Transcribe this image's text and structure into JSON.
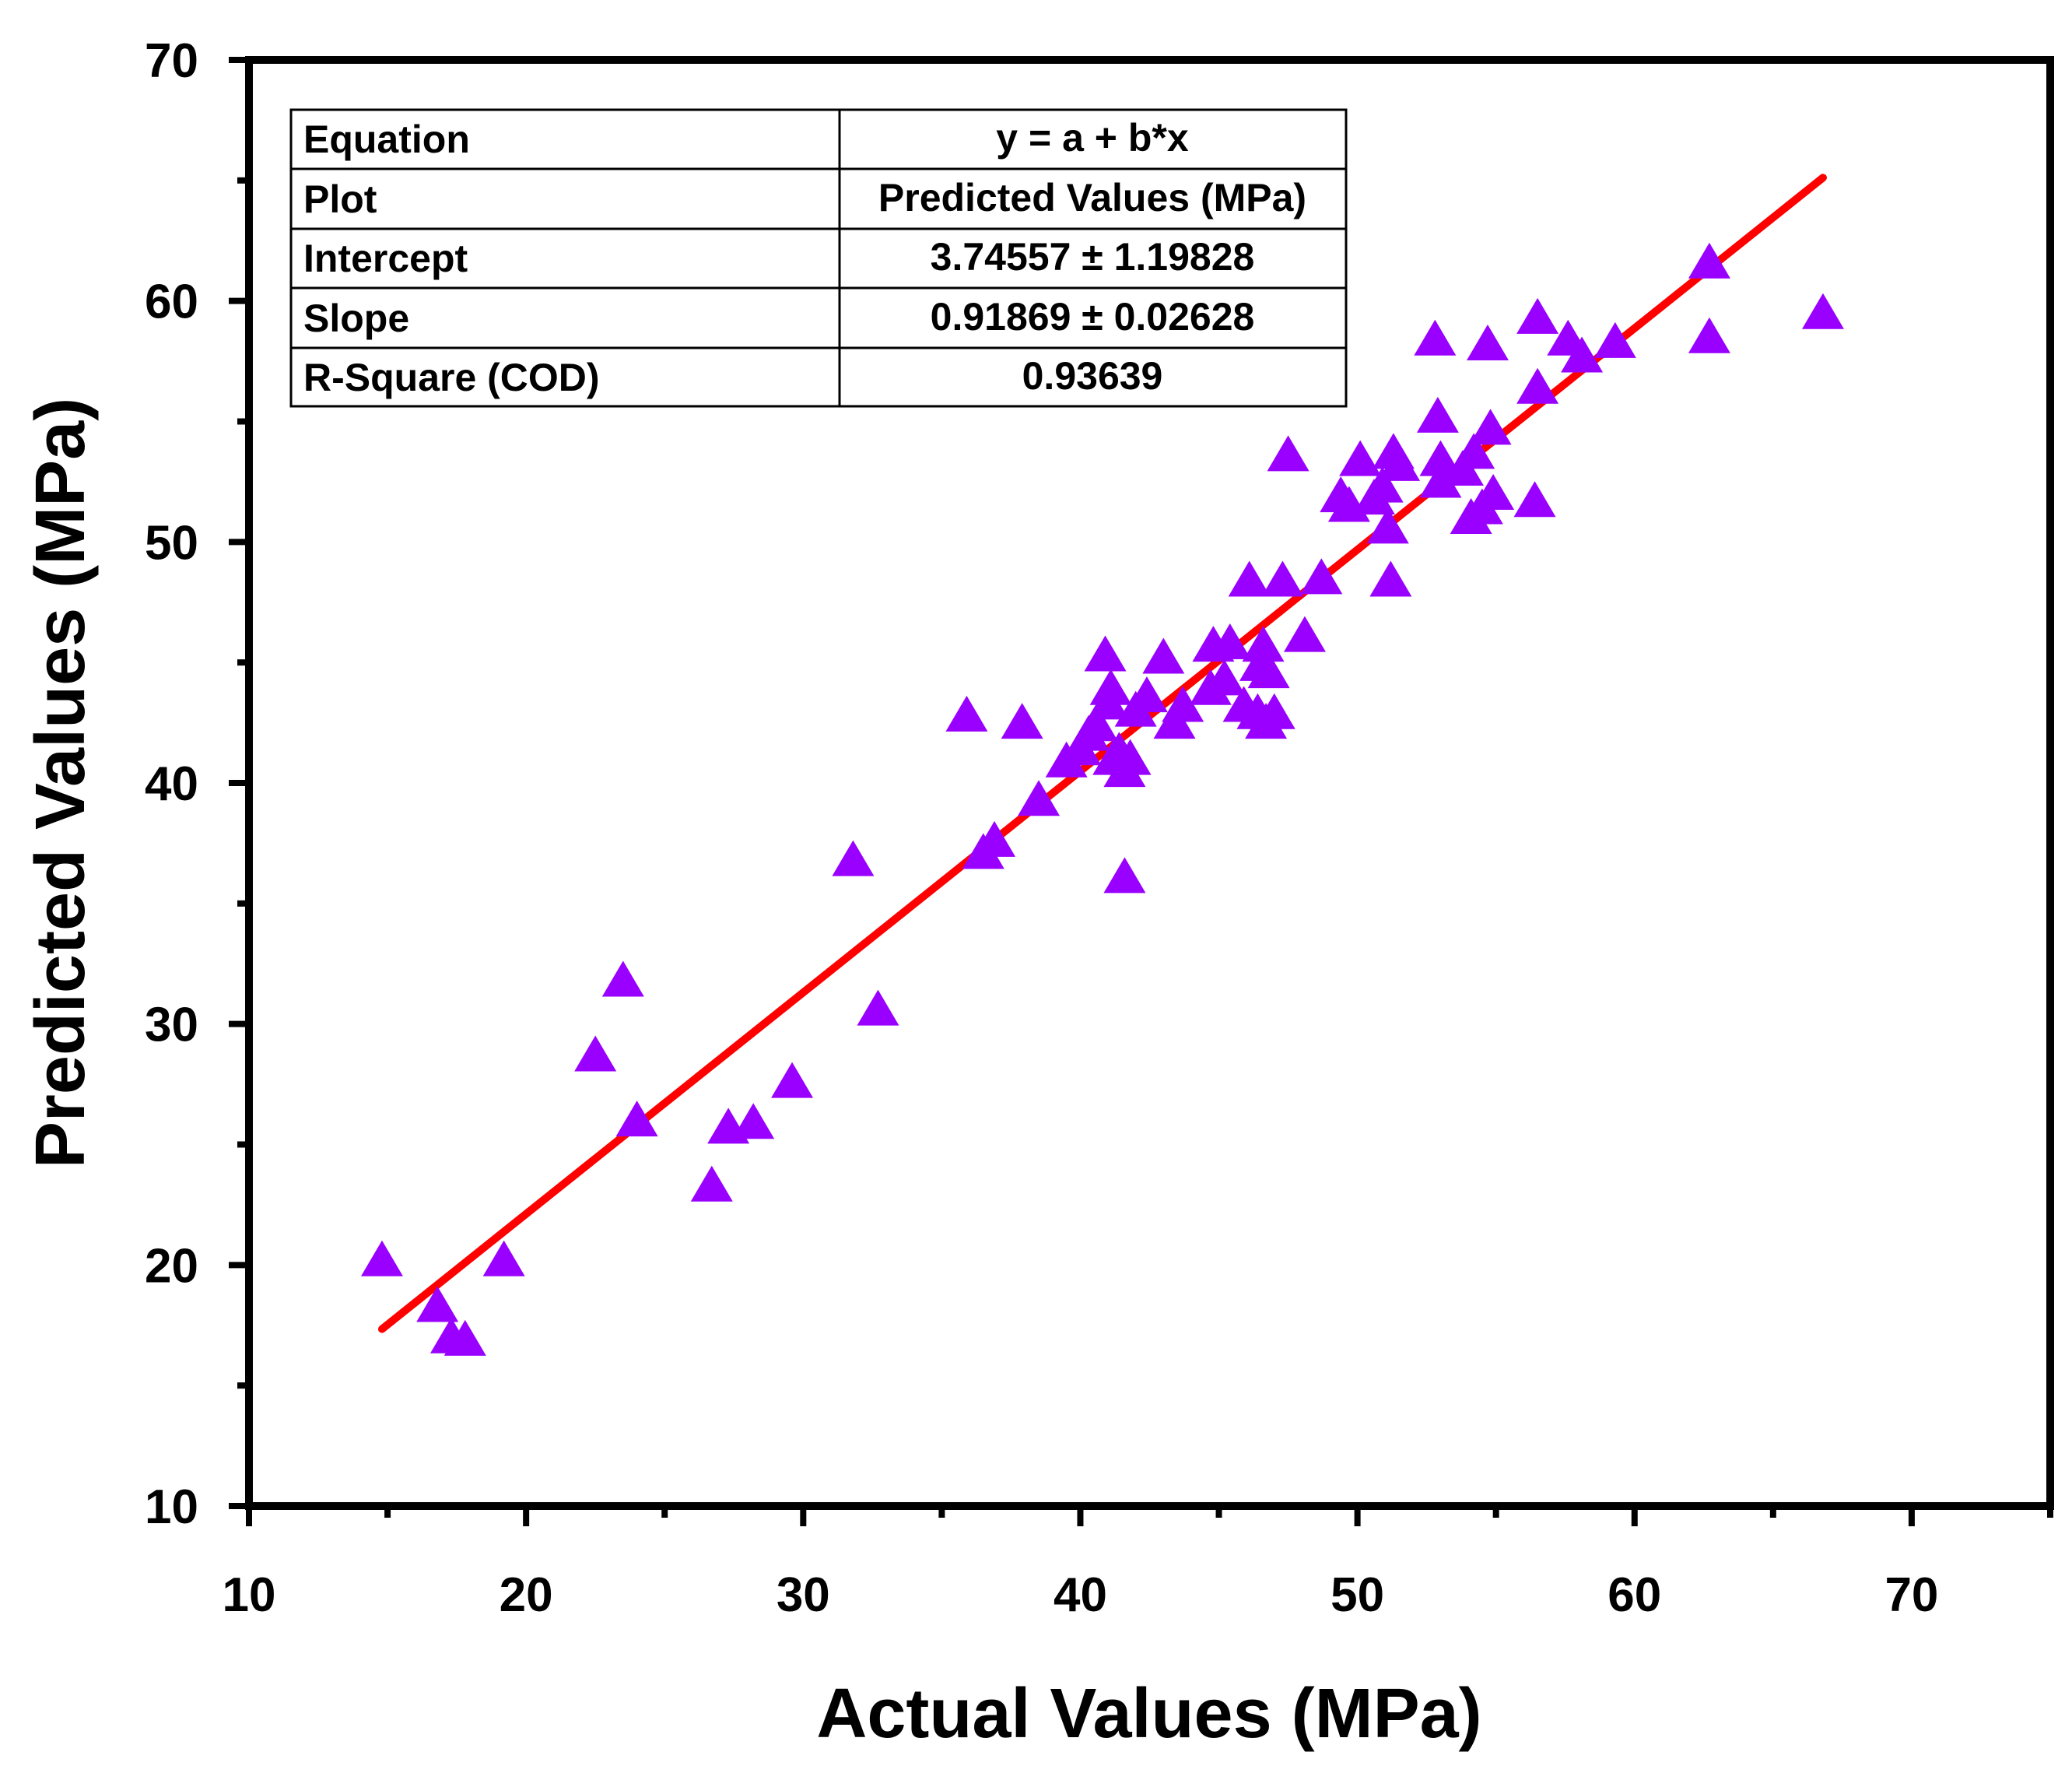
{
  "chart_data": {
    "type": "scatter",
    "title": "",
    "xlabel": "Actual Values (MPa)",
    "ylabel": "Predicted Values (MPa)",
    "xlim": [
      10,
      75
    ],
    "ylim": [
      10,
      70
    ],
    "xticks": [
      10,
      20,
      30,
      40,
      50,
      60,
      70
    ],
    "yticks": [
      10,
      20,
      30,
      40,
      50,
      60,
      70
    ],
    "grid": false,
    "marker_color": "#9900ff",
    "fit_color": "#ff0000",
    "fit": {
      "intercept": 3.74557,
      "slope": 0.91869,
      "x_range": [
        14.8,
        66.8
      ]
    },
    "stats_table": [
      {
        "label": "Equation",
        "value": "y = a + b*x"
      },
      {
        "label": "Plot",
        "value": "Predicted Values (MPa)"
      },
      {
        "label": "Intercept",
        "value": "3.74557 ± 1.19828"
      },
      {
        "label": "Slope",
        "value": "0.91869 ± 0.02628"
      },
      {
        "label": "R-Square (COD)",
        "value": "0.93639"
      }
    ],
    "series": [
      {
        "name": "Predicted Values (MPa)",
        "points": [
          [
            14.8,
            20.1
          ],
          [
            16.8,
            18.2
          ],
          [
            17.3,
            16.9
          ],
          [
            17.8,
            16.8
          ],
          [
            19.2,
            20.1
          ],
          [
            22.5,
            28.6
          ],
          [
            23.5,
            31.7
          ],
          [
            24.0,
            25.9
          ],
          [
            26.7,
            23.2
          ],
          [
            27.3,
            25.6
          ],
          [
            28.2,
            25.8
          ],
          [
            29.6,
            27.5
          ],
          [
            31.8,
            36.7
          ],
          [
            32.7,
            30.5
          ],
          [
            35.9,
            42.7
          ],
          [
            36.5,
            37.0
          ],
          [
            36.9,
            37.5
          ],
          [
            37.9,
            42.4
          ],
          [
            38.5,
            39.2
          ],
          [
            39.5,
            40.8
          ],
          [
            40.0,
            41.3
          ],
          [
            40.3,
            41.9
          ],
          [
            40.6,
            42.3
          ],
          [
            40.9,
            45.2
          ],
          [
            41.0,
            43.2
          ],
          [
            41.1,
            43.8
          ],
          [
            41.2,
            40.9
          ],
          [
            41.4,
            41.2
          ],
          [
            41.6,
            40.4
          ],
          [
            41.6,
            36.0
          ],
          [
            41.8,
            40.9
          ],
          [
            42.0,
            42.9
          ],
          [
            42.4,
            43.5
          ],
          [
            43.0,
            45.1
          ],
          [
            43.4,
            42.4
          ],
          [
            43.7,
            43.1
          ],
          [
            44.7,
            43.8
          ],
          [
            44.8,
            45.6
          ],
          [
            45.2,
            44.2
          ],
          [
            45.4,
            45.7
          ],
          [
            45.9,
            43.1
          ],
          [
            46.1,
            48.3
          ],
          [
            46.4,
            42.8
          ],
          [
            46.5,
            44.8
          ],
          [
            46.6,
            45.6
          ],
          [
            46.7,
            42.4
          ],
          [
            46.8,
            44.5
          ],
          [
            47.0,
            42.8
          ],
          [
            47.3,
            48.3
          ],
          [
            47.5,
            53.5
          ],
          [
            48.1,
            46.0
          ],
          [
            48.7,
            48.4
          ],
          [
            49.4,
            51.8
          ],
          [
            49.7,
            51.4
          ],
          [
            50.1,
            53.3
          ],
          [
            50.6,
            51.7
          ],
          [
            50.9,
            52.2
          ],
          [
            51.1,
            50.5
          ],
          [
            51.2,
            48.3
          ],
          [
            51.3,
            53.6
          ],
          [
            51.5,
            53.1
          ],
          [
            52.8,
            58.3
          ],
          [
            52.9,
            55.1
          ],
          [
            53.0,
            52.4
          ],
          [
            53.0,
            53.3
          ],
          [
            53.8,
            52.9
          ],
          [
            54.1,
            50.9
          ],
          [
            54.2,
            53.6
          ],
          [
            54.5,
            51.3
          ],
          [
            54.7,
            58.1
          ],
          [
            54.8,
            54.6
          ],
          [
            54.9,
            51.9
          ],
          [
            56.4,
            51.6
          ],
          [
            56.5,
            59.2
          ],
          [
            56.5,
            56.3
          ],
          [
            57.6,
            58.3
          ],
          [
            58.1,
            57.6
          ],
          [
            59.3,
            58.2
          ],
          [
            62.7,
            61.5
          ],
          [
            62.7,
            58.4
          ],
          [
            66.8,
            59.4
          ]
        ]
      }
    ]
  }
}
